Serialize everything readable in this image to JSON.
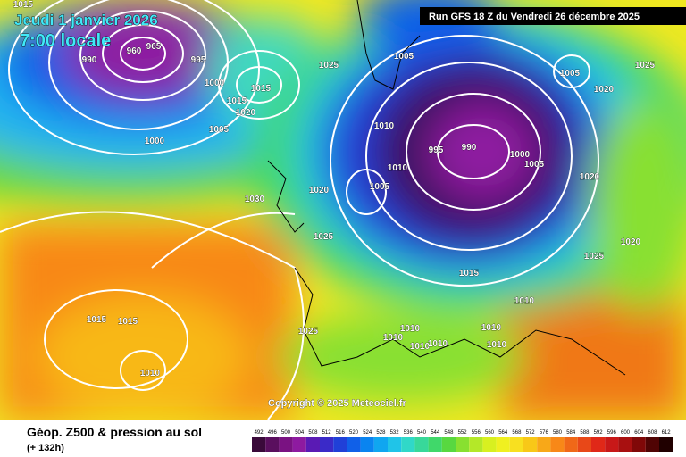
{
  "header": {
    "date": "Jeudi 1 janvier 2026",
    "time": "7:00 locale",
    "run": "Run GFS 18 Z du Vendredi 26 décembre 2025"
  },
  "isobar_labels": [
    "1015",
    "965",
    "960",
    "990",
    "995",
    "1000",
    "1005",
    "1000",
    "1015",
    "1015",
    "1020",
    "1030",
    "1025",
    "1005",
    "1005",
    "1025",
    "1020",
    "1010",
    "995",
    "990",
    "1000",
    "1005",
    "1010",
    "1005",
    "1020",
    "1025",
    "1020",
    "1020",
    "1025",
    "1015",
    "1010",
    "1015",
    "1015",
    "1025",
    "1010",
    "1010",
    "1010",
    "1010",
    "1010",
    "1010",
    "1010"
  ],
  "copyright": "Copyright © 2025 Meteociel.fr",
  "footer": {
    "title": "Géop. Z500 & pression au sol",
    "lead": "(+ 132h)"
  },
  "colorbar": {
    "ticks": [
      492,
      496,
      500,
      504,
      508,
      512,
      516,
      520,
      524,
      528,
      532,
      536,
      540,
      544,
      548,
      552,
      556,
      560,
      564,
      568,
      572,
      576,
      580,
      584,
      588,
      592,
      596,
      600,
      604,
      608,
      612
    ],
    "colors": [
      "#3a0a3a",
      "#5a0f5e",
      "#7a1282",
      "#8e1aa0",
      "#5a1ab4",
      "#3a2ac8",
      "#2040d8",
      "#1060e8",
      "#0a84f0",
      "#10a6f0",
      "#20c4e8",
      "#30d8c8",
      "#38d89a",
      "#40d86a",
      "#58d840",
      "#88e030",
      "#b4e828",
      "#d8f020",
      "#f0f020",
      "#f8e020",
      "#f8c818",
      "#f8a818",
      "#f88818",
      "#f06818",
      "#e84818",
      "#e02818",
      "#c81818",
      "#a81010",
      "#800808",
      "#500404",
      "#200000"
    ]
  }
}
